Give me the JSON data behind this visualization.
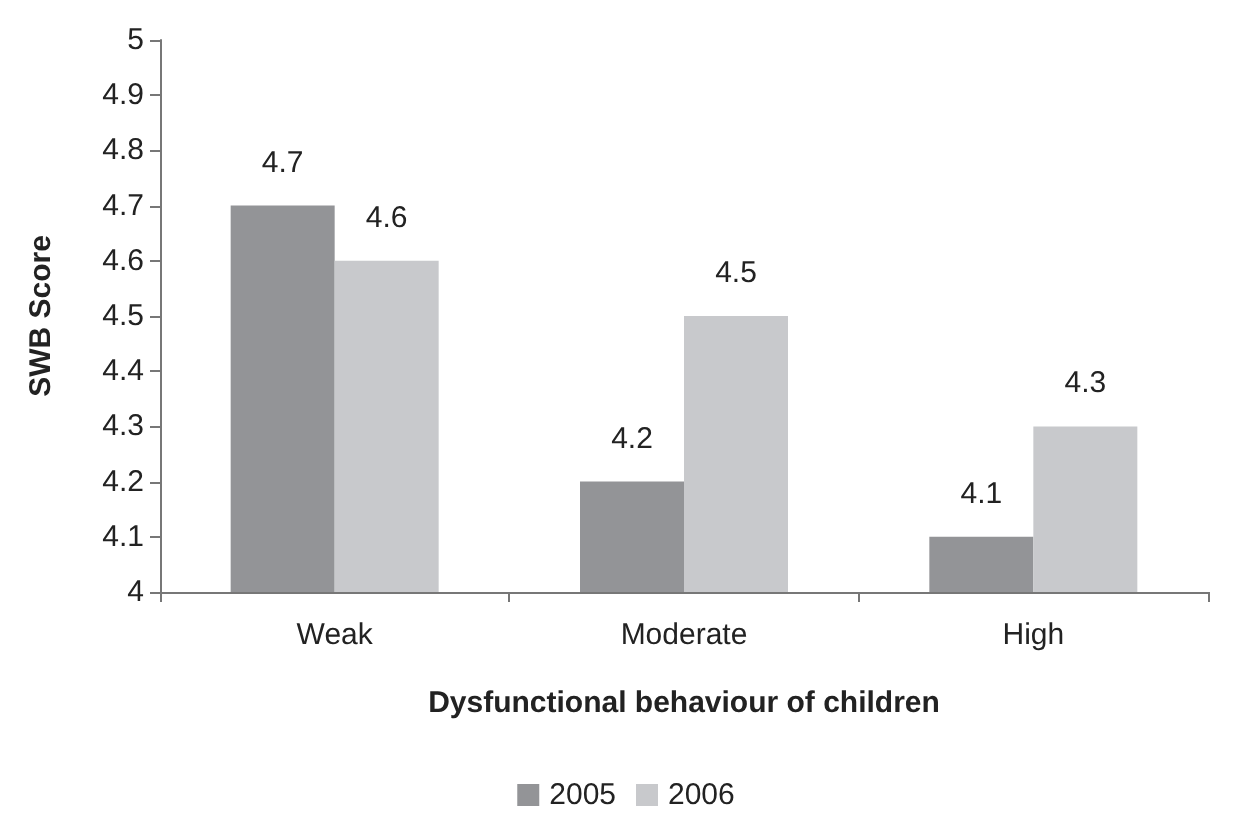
{
  "chart_data": {
    "type": "bar",
    "xlabel": "Dysfunctional behaviour of children",
    "ylabel": "SWB Score",
    "categories": [
      "Weak",
      "Moderate",
      "High"
    ],
    "series": [
      {
        "name": "2005",
        "color": "#939497",
        "values": [
          4.7,
          4.2,
          4.1
        ]
      },
      {
        "name": "2006",
        "color": "#c8c9cc",
        "values": [
          4.6,
          4.5,
          4.3
        ]
      }
    ],
    "ylim": [
      4,
      5
    ],
    "yticks": [
      4,
      4.1,
      4.2,
      4.3,
      4.4,
      4.5,
      4.6,
      4.7,
      4.8,
      4.9,
      5
    ],
    "data_labels": true,
    "grid": false,
    "legend": "bottom"
  }
}
